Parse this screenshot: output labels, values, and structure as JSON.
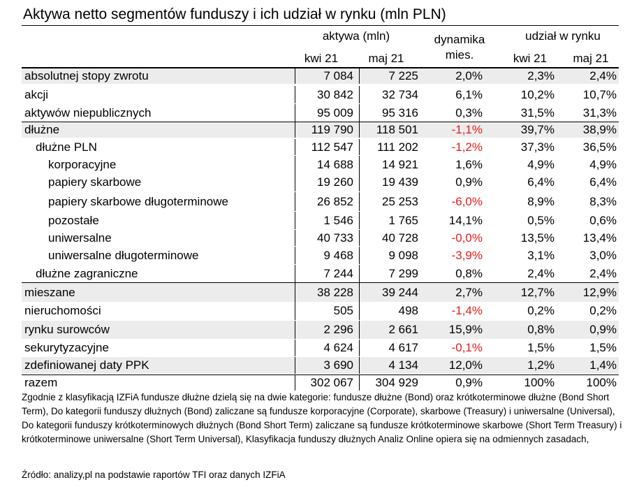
{
  "title": "Aktywa netto segmentów funduszy i ich udział w rynku (mln PLN)",
  "header": {
    "aktywa_group": "aktywa (mln)",
    "dynamika_line1": "dynamika",
    "dynamika_line2": "mies.",
    "udzial_group": "udział w rynku",
    "col_kwi": "kwi 21",
    "col_maj": "maj 21",
    "col_udzial_kwi": "kwi 21",
    "col_udzial_maj": "maj 21"
  },
  "rows": [
    {
      "label": "absolutnej stopy zwrotu",
      "kwi": "7 084",
      "maj": "7 225",
      "dyn": "2,0%",
      "u_kwi": "2,3%",
      "u_maj": "2,4%"
    },
    {
      "label": "akcji",
      "kwi": "30 842",
      "maj": "32 734",
      "dyn": "6,1%",
      "u_kwi": "10,2%",
      "u_maj": "10,7%"
    },
    {
      "label": "aktywów niepublicznych",
      "kwi": "95 009",
      "maj": "95 316",
      "dyn": "0,3%",
      "u_kwi": "31,5%",
      "u_maj": "31,3%"
    },
    {
      "label": "dłużne",
      "kwi": "119 790",
      "maj": "118 501",
      "dyn": "-1,1%",
      "u_kwi": "39,7%",
      "u_maj": "38,9%"
    },
    {
      "label": "dłużne PLN",
      "kwi": "112 547",
      "maj": "111 202",
      "dyn": "-1,2%",
      "u_kwi": "37,3%",
      "u_maj": "36,5%"
    },
    {
      "label": "korporacyjne",
      "kwi": "14 688",
      "maj": "14 921",
      "dyn": "1,6%",
      "u_kwi": "4,9%",
      "u_maj": "4,9%"
    },
    {
      "label": "papiery skarbowe",
      "kwi": "19 260",
      "maj": "19 439",
      "dyn": "0,9%",
      "u_kwi": "6,4%",
      "u_maj": "6,4%"
    },
    {
      "label": "papiery skarbowe długoterminowe",
      "kwi": "26 852",
      "maj": "25 253",
      "dyn": "-6,0%",
      "u_kwi": "8,9%",
      "u_maj": "8,3%"
    },
    {
      "label": "pozostałe",
      "kwi": "1 546",
      "maj": "1 765",
      "dyn": "14,1%",
      "u_kwi": "0,5%",
      "u_maj": "0,6%"
    },
    {
      "label": "uniwersalne",
      "kwi": "40 733",
      "maj": "40 728",
      "dyn": "-0,0%",
      "u_kwi": "13,5%",
      "u_maj": "13,4%"
    },
    {
      "label": "uniwersalne długoterminowe",
      "kwi": "9 468",
      "maj": "9 098",
      "dyn": "-3,9%",
      "u_kwi": "3,1%",
      "u_maj": "3,0%"
    },
    {
      "label": "dłużne zagraniczne",
      "kwi": "7 244",
      "maj": "7 299",
      "dyn": "0,8%",
      "u_kwi": "2,4%",
      "u_maj": "2,4%"
    },
    {
      "label": "mieszane",
      "kwi": "38 228",
      "maj": "39 244",
      "dyn": "2,7%",
      "u_kwi": "12,7%",
      "u_maj": "12,9%"
    },
    {
      "label": "nieruchomości",
      "kwi": "505",
      "maj": "498",
      "dyn": "-1,4%",
      "u_kwi": "0,2%",
      "u_maj": "0,2%"
    },
    {
      "label": "rynku surowców",
      "kwi": "2 296",
      "maj": "2 661",
      "dyn": "15,9%",
      "u_kwi": "0,8%",
      "u_maj": "0,9%"
    },
    {
      "label": "sekurytyzacyjne",
      "kwi": "4 624",
      "maj": "4 617",
      "dyn": "-0,1%",
      "u_kwi": "1,5%",
      "u_maj": "1,5%"
    },
    {
      "label": "zdefiniowanej daty PPK",
      "kwi": "3 690",
      "maj": "4 134",
      "dyn": "12,0%",
      "u_kwi": "1,2%",
      "u_maj": "1,4%"
    },
    {
      "label": "razem",
      "kwi": "302 067",
      "maj": "304 929",
      "dyn": "0,9%",
      "u_kwi": "100%",
      "u_maj": "100%"
    }
  ],
  "note": "Zgodnie z klasyfikacją IZFiA fundusze dłużne dzielą się na dwie kategorie: fundusze dłużne (Bond) oraz krótkoterminowe dłużne (Bond Short Term), Do kategorii funduszy dłużnych (Bond) zaliczane są fundusze korporacyjne (Corporate), skarbowe (Treasury) i uniwersalne (Universal), Do kategorii funduszy krótkoterminowych dłużnych (Bond Short Term) zaliczane są fundusze krótkoterminowe skarbowe (Short Term Treasury) i krótkoterminowe uniwersalne (Short Term Universal), Klasyfikacja funduszy dłużnych Analiz Online opiera się na odmiennych zasadach,",
  "source": "Źródło: analizy,pl na podstawie raportów TFI oraz danych IZFiA",
  "colors": {
    "negative": "#e41c1c",
    "shade": "#ececec"
  }
}
